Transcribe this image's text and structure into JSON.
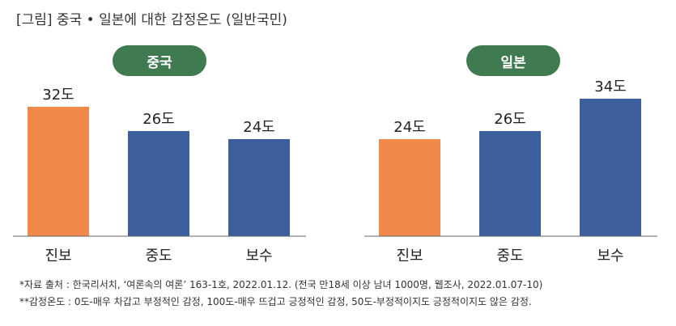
{
  "title": "[그림] 중국 • 일본에 대한 감정온도 (일반국민)",
  "colors": {
    "progressive": "#f0884a",
    "other": "#3d5f9e",
    "pill": "#3f7a50",
    "baseline": "#666666"
  },
  "chart_data": [
    {
      "type": "bar",
      "title": "중국",
      "categories": [
        "진보",
        "중도",
        "보수"
      ],
      "values": [
        32,
        26,
        24
      ],
      "data_labels": [
        "32도",
        "26도",
        "24도"
      ],
      "bar_colors": [
        "#f0884a",
        "#3d5f9e",
        "#3d5f9e"
      ],
      "ylim": [
        0,
        40
      ],
      "grid": false
    },
    {
      "type": "bar",
      "title": "일본",
      "categories": [
        "진보",
        "중도",
        "보수"
      ],
      "values": [
        24,
        26,
        34
      ],
      "data_labels": [
        "24도",
        "26도",
        "34도"
      ],
      "bar_colors": [
        "#f0884a",
        "#3d5f9e",
        "#3d5f9e"
      ],
      "ylim": [
        0,
        40
      ],
      "grid": false
    }
  ],
  "notes": [
    "*자료 출처 : 한국리서치, ‘여론속의 여론’ 163-1호, 2022.01.12. (전국 만18세 이상 남녀 1000명, 웹조사, 2022.01.07-10)",
    "**감정온도 : 0도-매우 차갑고 부정적인 감정, 100도-매우 뜨겁고 긍정적인 감정, 50도-부정적이지도 긍정적이지도 않은 감정."
  ]
}
